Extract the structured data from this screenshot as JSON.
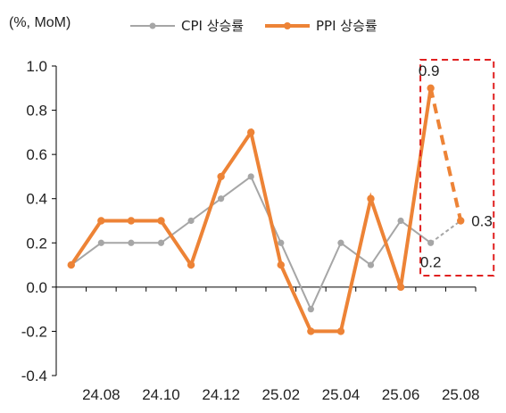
{
  "chart_data": {
    "type": "line",
    "unit_label": "(%, MoM)",
    "ylim": [
      -0.4,
      1.0
    ],
    "yticks": [
      "1.0",
      "0.8",
      "0.6",
      "0.4",
      "0.2",
      "0.0",
      "-0.2",
      "-0.4"
    ],
    "x": [
      "24.07",
      "24.08",
      "24.09",
      "24.10",
      "24.11",
      "24.12",
      "25.01",
      "25.02",
      "25.03",
      "25.04",
      "25.05",
      "25.06",
      "25.07",
      "25.08"
    ],
    "x_tick_labels": [
      "24.08",
      "24.10",
      "24.12",
      "25.02",
      "25.04",
      "25.06",
      "25.08"
    ],
    "grid": false,
    "legend": "top",
    "series": [
      {
        "name": "CPI 상승률",
        "color": "#a6a6a6",
        "values": [
          0.1,
          0.2,
          0.2,
          0.2,
          0.3,
          0.4,
          0.5,
          0.2,
          -0.1,
          0.2,
          0.1,
          0.3,
          0.2,
          0.3
        ],
        "forecast_from_index": 12
      },
      {
        "name": "PPI 상승률",
        "color": "#ed8336",
        "values": [
          0.1,
          0.3,
          0.3,
          0.3,
          0.1,
          0.5,
          0.7,
          0.1,
          -0.2,
          -0.2,
          0.4,
          0.0,
          0.9,
          0.3
        ],
        "forecast_from_index": 12
      }
    ],
    "annotations": [
      {
        "text": "0.9",
        "series": 1,
        "index": 12
      },
      {
        "text": "0.3",
        "series": 1,
        "index": 13
      },
      {
        "text": "0.2",
        "series": 0,
        "index": 12
      }
    ],
    "highlight_box_color": "#e02020"
  }
}
